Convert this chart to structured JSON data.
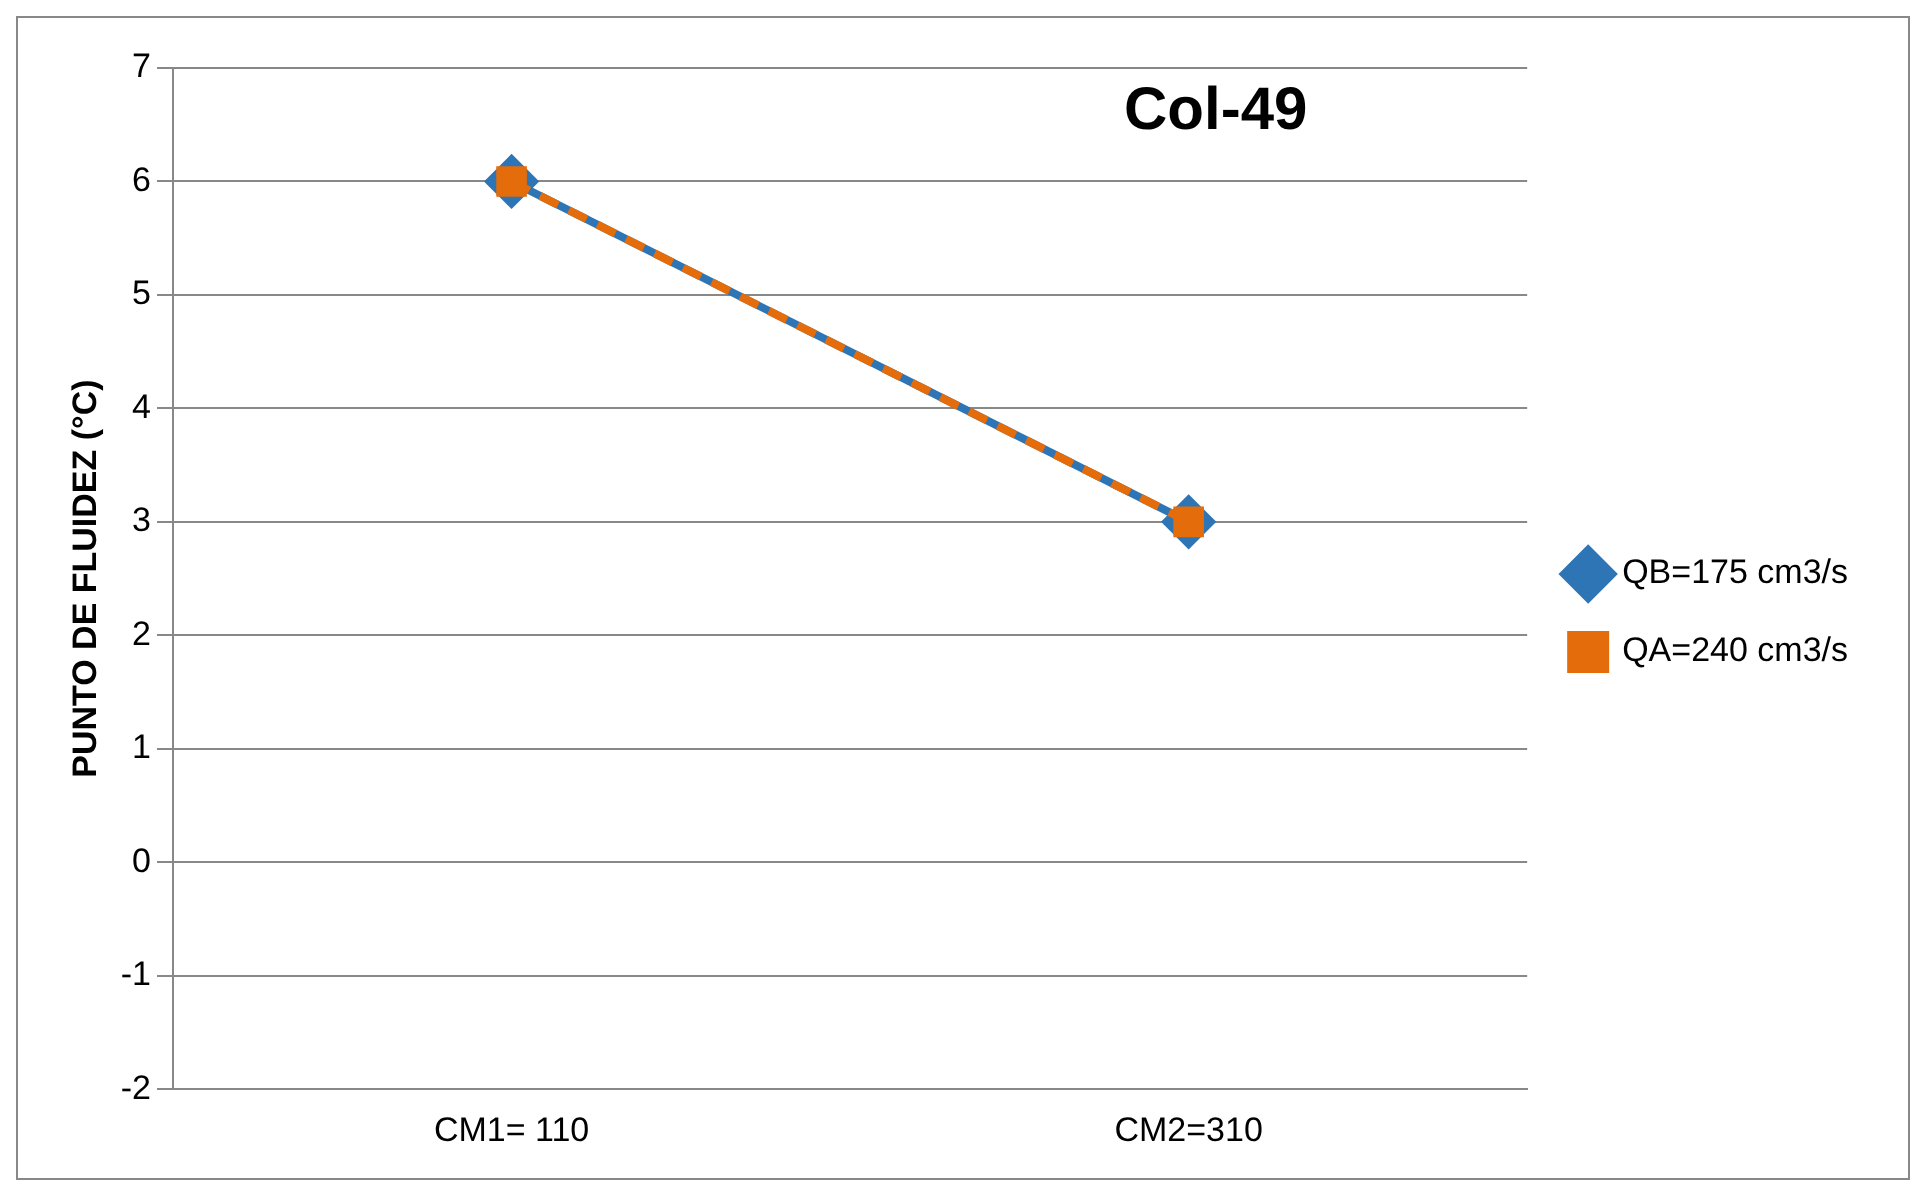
{
  "chart_data": {
    "type": "line",
    "title": "Col-49",
    "ylabel": "PUNTO DE FLUIDEZ (°C)",
    "categories": [
      "CM1= 110",
      "CM2=310"
    ],
    "series": [
      {
        "name": "QB=175 cm3/s",
        "color": "#2e75b6",
        "values": [
          6,
          3
        ],
        "marker": "diamond",
        "line_style": "solid"
      },
      {
        "name": "QA=240 cm3/s",
        "color": "#e46c0a",
        "values": [
          6,
          3
        ],
        "marker": "square",
        "line_style": "dashed"
      }
    ],
    "ylim": [
      -2,
      7
    ],
    "yticks": [
      -2,
      -1,
      0,
      1,
      2,
      3,
      4,
      5,
      6,
      7
    ],
    "grid": "y",
    "legend": "right"
  }
}
